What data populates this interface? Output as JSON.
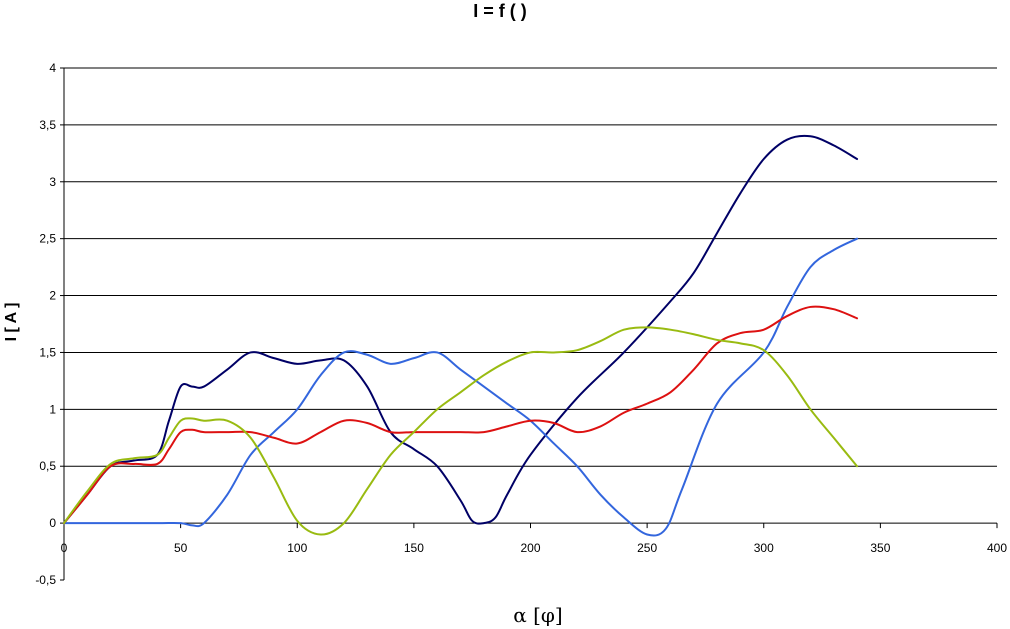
{
  "chart_data": {
    "type": "line",
    "title": "I = f (   )",
    "xlabel": "α [φ]",
    "ylabel": "I [ A ]",
    "xlim": [
      0,
      400
    ],
    "ylim": [
      -0.5,
      4
    ],
    "x_ticks": [
      "0",
      "50",
      "100",
      "150",
      "200",
      "250",
      "300",
      "350",
      "400"
    ],
    "y_ticks": [
      "-0,5",
      "0",
      "0,5",
      "1",
      "1,5",
      "2",
      "2,5",
      "3",
      "3,5",
      "4"
    ],
    "grid": "horizontal",
    "legend": "none",
    "series": [
      {
        "color": "#000066",
        "points": [
          [
            0,
            0
          ],
          [
            10,
            0.25
          ],
          [
            20,
            0.5
          ],
          [
            30,
            0.55
          ],
          [
            40,
            0.6
          ],
          [
            45,
            0.9
          ],
          [
            50,
            1.2
          ],
          [
            55,
            1.2
          ],
          [
            60,
            1.2
          ],
          [
            70,
            1.35
          ],
          [
            80,
            1.5
          ],
          [
            90,
            1.45
          ],
          [
            100,
            1.4
          ],
          [
            110,
            1.43
          ],
          [
            120,
            1.43
          ],
          [
            130,
            1.2
          ],
          [
            140,
            0.8
          ],
          [
            150,
            0.65
          ],
          [
            160,
            0.5
          ],
          [
            170,
            0.2
          ],
          [
            175,
            0.02
          ],
          [
            180,
            0
          ],
          [
            185,
            0.05
          ],
          [
            190,
            0.25
          ],
          [
            200,
            0.6
          ],
          [
            220,
            1.1
          ],
          [
            240,
            1.5
          ],
          [
            260,
            1.95
          ],
          [
            270,
            2.2
          ],
          [
            280,
            2.55
          ],
          [
            290,
            2.9
          ],
          [
            300,
            3.2
          ],
          [
            310,
            3.37
          ],
          [
            320,
            3.4
          ],
          [
            330,
            3.32
          ],
          [
            340,
            3.2
          ]
        ]
      },
      {
        "color": "#3366dd",
        "points": [
          [
            0,
            0
          ],
          [
            20,
            0
          ],
          [
            40,
            0
          ],
          [
            50,
            0
          ],
          [
            55,
            -0.02
          ],
          [
            60,
            0
          ],
          [
            70,
            0.25
          ],
          [
            80,
            0.6
          ],
          [
            90,
            0.8
          ],
          [
            100,
            1.0
          ],
          [
            110,
            1.3
          ],
          [
            120,
            1.5
          ],
          [
            130,
            1.48
          ],
          [
            140,
            1.4
          ],
          [
            150,
            1.45
          ],
          [
            160,
            1.5
          ],
          [
            170,
            1.35
          ],
          [
            180,
            1.2
          ],
          [
            190,
            1.05
          ],
          [
            200,
            0.9
          ],
          [
            210,
            0.7
          ],
          [
            220,
            0.5
          ],
          [
            230,
            0.25
          ],
          [
            240,
            0.05
          ],
          [
            250,
            -0.1
          ],
          [
            258,
            -0.05
          ],
          [
            265,
            0.3
          ],
          [
            280,
            1.05
          ],
          [
            300,
            1.5
          ],
          [
            310,
            1.9
          ],
          [
            320,
            2.25
          ],
          [
            330,
            2.4
          ],
          [
            340,
            2.5
          ]
        ]
      },
      {
        "color": "#dd1111",
        "points": [
          [
            0,
            0
          ],
          [
            10,
            0.25
          ],
          [
            20,
            0.5
          ],
          [
            30,
            0.52
          ],
          [
            40,
            0.52
          ],
          [
            45,
            0.65
          ],
          [
            50,
            0.8
          ],
          [
            55,
            0.82
          ],
          [
            60,
            0.8
          ],
          [
            70,
            0.8
          ],
          [
            80,
            0.8
          ],
          [
            90,
            0.75
          ],
          [
            100,
            0.7
          ],
          [
            110,
            0.8
          ],
          [
            120,
            0.9
          ],
          [
            130,
            0.88
          ],
          [
            140,
            0.8
          ],
          [
            150,
            0.8
          ],
          [
            160,
            0.8
          ],
          [
            170,
            0.8
          ],
          [
            180,
            0.8
          ],
          [
            190,
            0.85
          ],
          [
            200,
            0.9
          ],
          [
            210,
            0.88
          ],
          [
            220,
            0.8
          ],
          [
            230,
            0.85
          ],
          [
            240,
            0.97
          ],
          [
            250,
            1.05
          ],
          [
            260,
            1.15
          ],
          [
            270,
            1.35
          ],
          [
            280,
            1.58
          ],
          [
            290,
            1.67
          ],
          [
            300,
            1.7
          ],
          [
            310,
            1.82
          ],
          [
            320,
            1.9
          ],
          [
            330,
            1.88
          ],
          [
            340,
            1.8
          ]
        ]
      },
      {
        "color": "#99bb11",
        "points": [
          [
            0,
            0
          ],
          [
            10,
            0.28
          ],
          [
            20,
            0.52
          ],
          [
            30,
            0.57
          ],
          [
            40,
            0.6
          ],
          [
            45,
            0.75
          ],
          [
            50,
            0.9
          ],
          [
            55,
            0.92
          ],
          [
            60,
            0.9
          ],
          [
            70,
            0.9
          ],
          [
            80,
            0.75
          ],
          [
            90,
            0.4
          ],
          [
            100,
            0.02
          ],
          [
            110,
            -0.1
          ],
          [
            120,
            0
          ],
          [
            130,
            0.3
          ],
          [
            140,
            0.6
          ],
          [
            150,
            0.8
          ],
          [
            160,
            1.0
          ],
          [
            170,
            1.15
          ],
          [
            180,
            1.3
          ],
          [
            190,
            1.42
          ],
          [
            200,
            1.5
          ],
          [
            210,
            1.5
          ],
          [
            220,
            1.52
          ],
          [
            230,
            1.6
          ],
          [
            240,
            1.7
          ],
          [
            250,
            1.72
          ],
          [
            260,
            1.7
          ],
          [
            270,
            1.66
          ],
          [
            280,
            1.61
          ],
          [
            290,
            1.58
          ],
          [
            300,
            1.52
          ],
          [
            310,
            1.3
          ],
          [
            320,
            1.0
          ],
          [
            330,
            0.75
          ],
          [
            340,
            0.5
          ]
        ]
      }
    ]
  }
}
